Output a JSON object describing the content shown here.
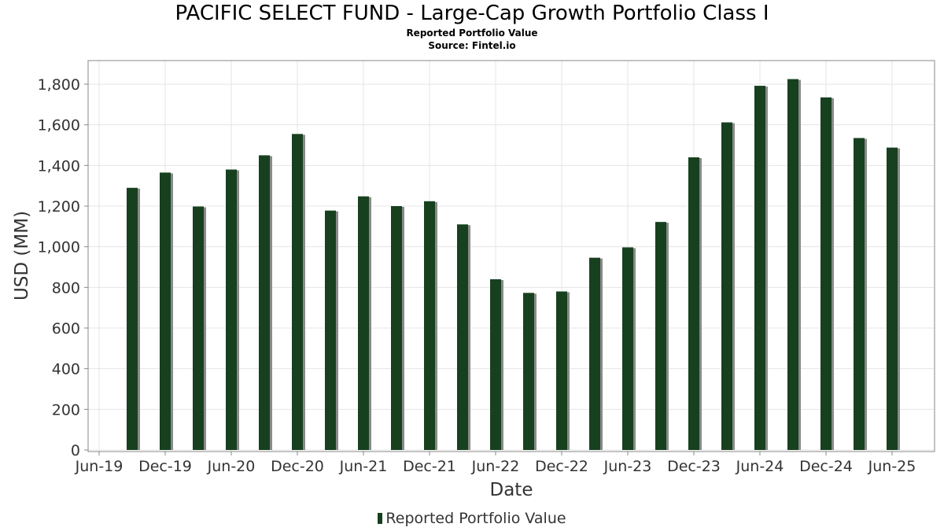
{
  "title": "PACIFIC SELECT FUND - Large-Cap Growth Portfolio Class I",
  "subtitle": "Reported Portfolio Value",
  "source": "Source: Fintel.io",
  "colors": {
    "bar": "#17401f",
    "bar_shadow": "#8a8a8a",
    "grid": "#e4e4e4",
    "frame": "#888888"
  },
  "chart_data": {
    "type": "bar",
    "xlabel": "Date",
    "ylabel": "USD (MM)",
    "ylim": [
      0,
      1900
    ],
    "y_ticks": [
      0,
      200,
      400,
      600,
      800,
      1000,
      1200,
      1400,
      1600,
      1800
    ],
    "y_tick_labels": [
      "0",
      "200",
      "400",
      "600",
      "800",
      "1,000",
      "1,200",
      "1,400",
      "1,600",
      "1,800"
    ],
    "x_tick_labels": [
      "Jun-19",
      "Dec-19",
      "Jun-20",
      "Dec-20",
      "Jun-21",
      "Dec-21",
      "Jun-22",
      "Dec-22",
      "Jun-23",
      "Dec-23",
      "Jun-24",
      "Dec-24",
      "Jun-25"
    ],
    "grid": true,
    "legend_position": "bottom",
    "series": [
      {
        "name": "Reported Portfolio Value",
        "categories": [
          "Sep-19",
          "Dec-19",
          "Mar-20",
          "Jun-20",
          "Sep-20",
          "Dec-20",
          "Mar-21",
          "Jun-21",
          "Sep-21",
          "Dec-21",
          "Mar-22",
          "Jun-22",
          "Sep-22",
          "Dec-22",
          "Mar-23",
          "Jun-23",
          "Sep-23",
          "Dec-23",
          "Mar-24",
          "Jun-24",
          "Sep-24",
          "Dec-24",
          "Mar-25",
          "Jun-25"
        ],
        "values": [
          1290,
          1365,
          1198,
          1380,
          1450,
          1555,
          1178,
          1248,
          1200,
          1224,
          1110,
          840,
          773,
          780,
          946,
          997,
          1122,
          1440,
          1612,
          1792,
          1825,
          1735,
          1535,
          1488
        ]
      }
    ]
  }
}
